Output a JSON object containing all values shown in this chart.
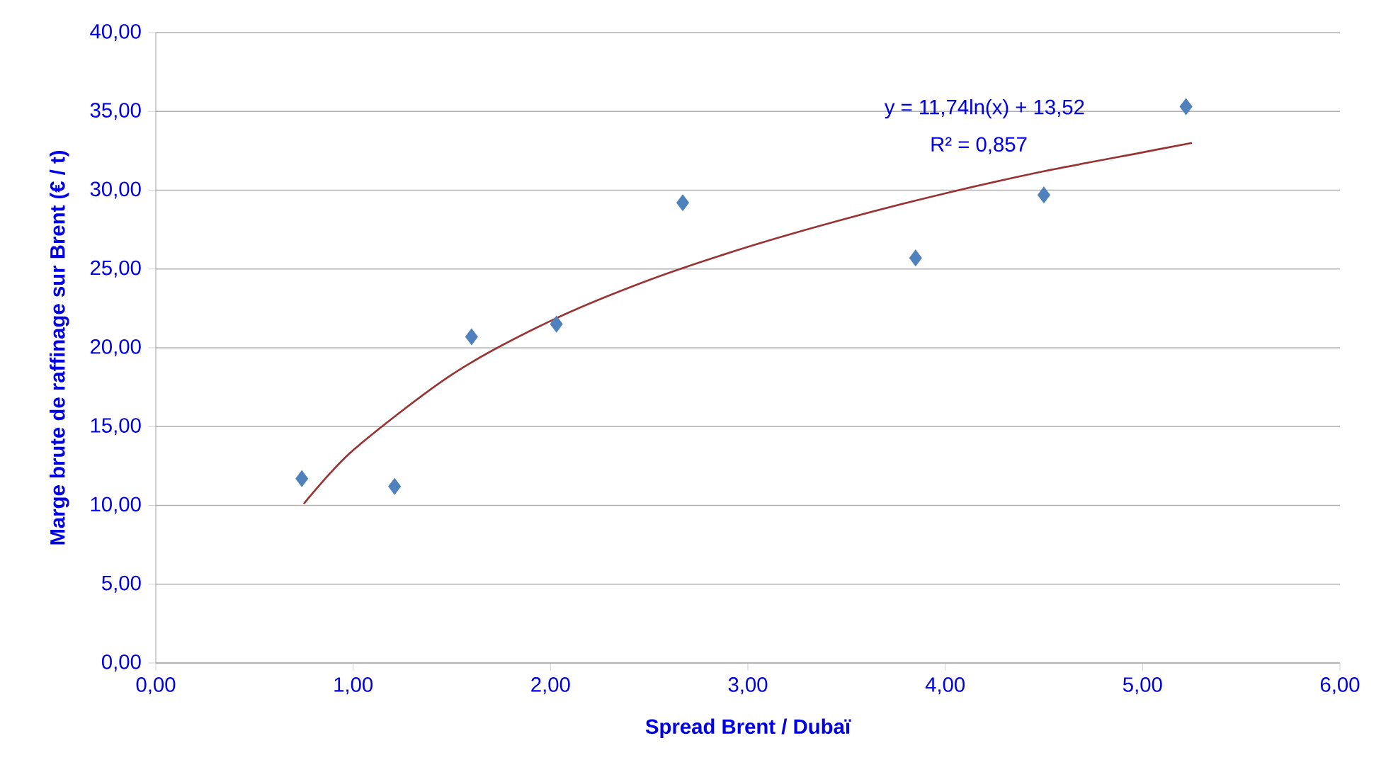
{
  "chart_data": {
    "type": "scatter",
    "xlabel": "Spread Brent /  Dubaï",
    "ylabel": "Marge brute de raffinage sur Brent (€ / t)",
    "xlim": [
      0,
      6
    ],
    "ylim": [
      0,
      40
    ],
    "xticks": [
      {
        "value": 0,
        "label": "0,00"
      },
      {
        "value": 1,
        "label": "1,00"
      },
      {
        "value": 2,
        "label": "2,00"
      },
      {
        "value": 3,
        "label": "3,00"
      },
      {
        "value": 4,
        "label": "4,00"
      },
      {
        "value": 5,
        "label": "5,00"
      },
      {
        "value": 6,
        "label": "6,00"
      }
    ],
    "yticks": [
      {
        "value": 0,
        "label": "0,00"
      },
      {
        "value": 5,
        "label": "5,00"
      },
      {
        "value": 10,
        "label": "10,00"
      },
      {
        "value": 15,
        "label": "15,00"
      },
      {
        "value": 20,
        "label": "20,00"
      },
      {
        "value": 25,
        "label": "25,00"
      },
      {
        "value": 30,
        "label": "30,00"
      },
      {
        "value": 35,
        "label": "35,00"
      },
      {
        "value": 40,
        "label": "40,00"
      }
    ],
    "grid": "y",
    "series": [
      {
        "marker": "diamond",
        "color": "#4f81bd",
        "x": [
          0.74,
          1.21,
          1.6,
          2.03,
          2.67,
          3.85,
          4.5,
          5.22
        ],
        "values": [
          11.7,
          11.2,
          20.7,
          21.5,
          29.2,
          25.7,
          29.7,
          35.3
        ]
      },
      {
        "type": "line",
        "marker": "none",
        "line_style": "solid",
        "color": "#993333",
        "x": [
          0.75,
          1.0,
          1.5,
          2.0,
          2.5,
          3.0,
          3.5,
          4.0,
          4.5,
          5.0,
          5.25
        ],
        "values": [
          10.1,
          13.5,
          18.3,
          21.7,
          24.3,
          26.4,
          28.2,
          29.8,
          31.2,
          32.4,
          33.0
        ]
      }
    ],
    "annotations": [
      "y = 11,74ln(x) + 13,52",
      "R² = 0,857"
    ]
  }
}
